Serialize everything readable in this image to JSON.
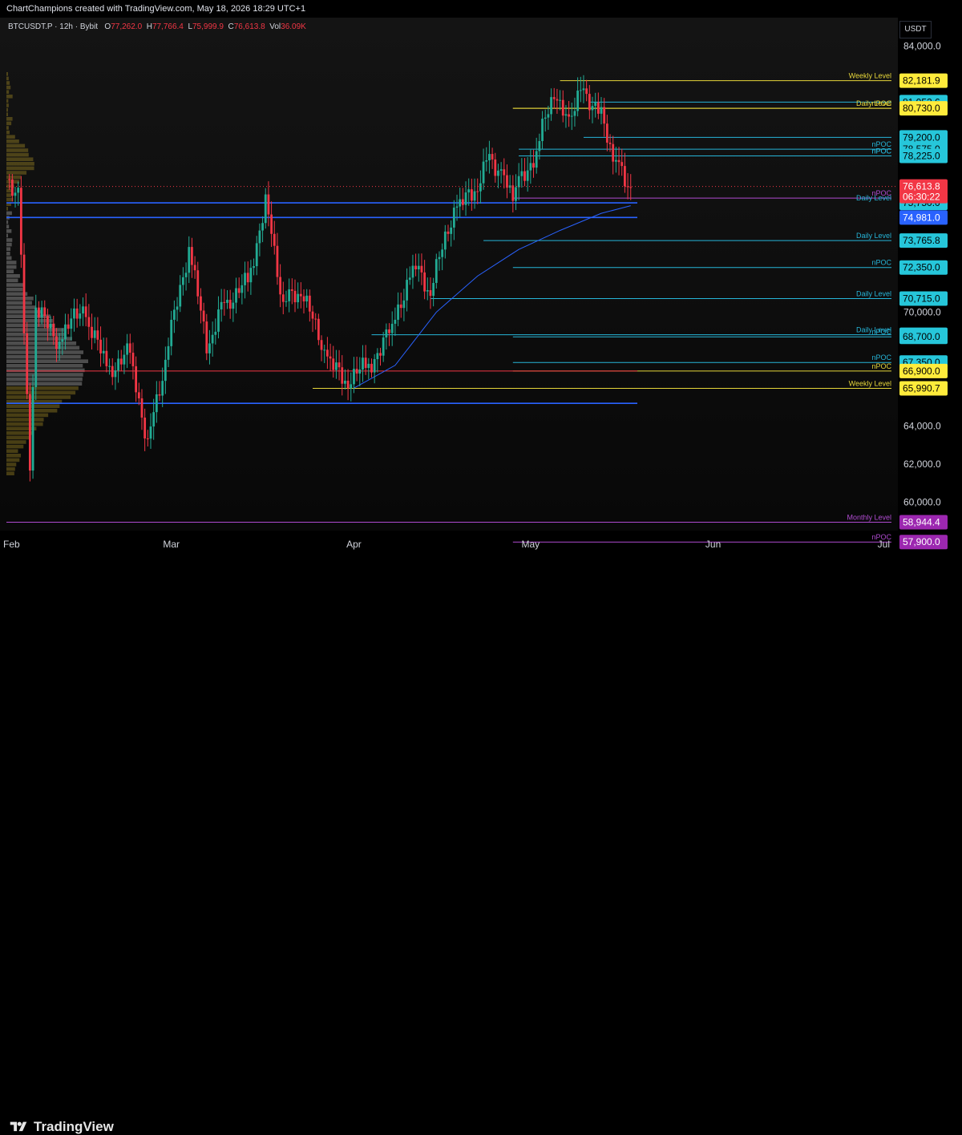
{
  "header": {
    "credit": "ChartChampions created with TradingView.com, May 18, 2026 18:29 UTC+1"
  },
  "legend": {
    "symbol": "BTCUSDT.P · 12h · Bybit",
    "o_label": "O",
    "o": "77,262.0",
    "h_label": "H",
    "h": "77,766.4",
    "l_label": "L",
    "l": "75,999.9",
    "c_label": "C",
    "c": "76,613.8",
    "vol_label": "Vol",
    "vol": "36.09K"
  },
  "axis": {
    "unit": "USDT"
  },
  "footer": {
    "brand": "TradingView"
  },
  "chart_data": {
    "type": "candlestick",
    "symbol": "BTCUSDT.P",
    "interval": "12h",
    "exchange": "Bybit",
    "ylim": [
      58500,
      85500
    ],
    "y_ticks": [
      {
        "value": 84000,
        "label": "84,000.0"
      },
      {
        "value": 70000,
        "label": "70,000.0"
      },
      {
        "value": 64000,
        "label": "64,000.0"
      },
      {
        "value": 62000,
        "label": "62,000.0"
      },
      {
        "value": 60000,
        "label": "60,000.0"
      }
    ],
    "x_ticks": [
      {
        "date": "2026-02-01",
        "label": "Feb"
      },
      {
        "date": "2026-03-01",
        "label": "Mar"
      },
      {
        "date": "2026-04-01",
        "label": "Apr"
      },
      {
        "date": "2026-05-01",
        "label": "May"
      },
      {
        "date": "2026-06-01",
        "label": "Jun"
      },
      {
        "date": "2026-07-01",
        "label": "Jul"
      }
    ],
    "x_range": [
      "2026-02-01",
      "2026-07-01"
    ],
    "candles": [
      {
        "date": "2026-02-01",
        "close": 77000
      },
      {
        "date": "2026-02-03",
        "close": 76500
      },
      {
        "date": "2026-02-05",
        "close": 62000
      },
      {
        "date": "2026-02-06",
        "close": 70000
      },
      {
        "date": "2026-02-10",
        "close": 68500
      },
      {
        "date": "2026-02-14",
        "close": 70200
      },
      {
        "date": "2026-02-18",
        "close": 67000
      },
      {
        "date": "2026-02-22",
        "close": 67800
      },
      {
        "date": "2026-02-25",
        "close": 63200
      },
      {
        "date": "2026-02-28",
        "close": 67500
      },
      {
        "date": "2026-03-04",
        "close": 73500
      },
      {
        "date": "2026-03-07",
        "close": 68000
      },
      {
        "date": "2026-03-10",
        "close": 70500
      },
      {
        "date": "2026-03-14",
        "close": 71500
      },
      {
        "date": "2026-03-17",
        "close": 76000
      },
      {
        "date": "2026-03-20",
        "close": 70500
      },
      {
        "date": "2026-03-23",
        "close": 71000
      },
      {
        "date": "2026-03-27",
        "close": 68000
      },
      {
        "date": "2026-03-30",
        "close": 66300
      },
      {
        "date": "2026-04-03",
        "close": 67000
      },
      {
        "date": "2026-04-07",
        "close": 68900
      },
      {
        "date": "2026-04-11",
        "close": 72500
      },
      {
        "date": "2026-04-14",
        "close": 71000
      },
      {
        "date": "2026-04-18",
        "close": 75500
      },
      {
        "date": "2026-04-21",
        "close": 76000
      },
      {
        "date": "2026-04-24",
        "close": 78200
      },
      {
        "date": "2026-04-26",
        "close": 77500
      },
      {
        "date": "2026-04-28",
        "close": 76300
      },
      {
        "date": "2026-05-02",
        "close": 78500
      },
      {
        "date": "2026-05-05",
        "close": 81500
      },
      {
        "date": "2026-05-07",
        "close": 80000
      },
      {
        "date": "2026-05-10",
        "close": 81700
      },
      {
        "date": "2026-05-13",
        "close": 80500
      },
      {
        "date": "2026-05-15",
        "close": 78300
      },
      {
        "date": "2026-05-18",
        "close": 76613.8
      }
    ],
    "moving_average": [
      {
        "date": "2026-04-01",
        "value": 66000
      },
      {
        "date": "2026-04-08",
        "value": 67200
      },
      {
        "date": "2026-04-15",
        "value": 70000
      },
      {
        "date": "2026-04-22",
        "value": 71900
      },
      {
        "date": "2026-04-29",
        "value": 73300
      },
      {
        "date": "2026-05-06",
        "value": 74300
      },
      {
        "date": "2026-05-13",
        "value": 75200
      },
      {
        "date": "2026-05-18",
        "value": 75600
      }
    ],
    "levels": [
      {
        "price": 82181.9,
        "label": "Weekly Level",
        "color": "#e6d63a",
        "tag_bg": "#ffeb3b",
        "tag_fg": "#000000",
        "start": "2026-05-06"
      },
      {
        "price": 81052.6,
        "label": "",
        "color": "#26b5d8",
        "tag_bg": "#26c6da",
        "tag_fg": "#000000",
        "start": "2026-05-11"
      },
      {
        "price": 80730.0,
        "label": "Daily Level",
        "color": "#e6d63a",
        "tag_bg": "#ffeb3b",
        "tag_fg": "#000000",
        "start": "2026-04-28"
      },
      {
        "price": 80730.0,
        "label": "nPOC",
        "color": "#e6d63a",
        "tag_bg": "",
        "tag_fg": "",
        "start": "2026-04-28"
      },
      {
        "price": 79200.0,
        "label": "",
        "color": "#26b5d8",
        "tag_bg": "#26c6da",
        "tag_fg": "#000000",
        "start": "2026-05-10"
      },
      {
        "price": 78575.0,
        "label": "nPOC",
        "color": "#26b5d8",
        "tag_bg": "#26c6da",
        "tag_fg": "#000000",
        "start": "2026-04-29"
      },
      {
        "price": 78225.0,
        "label": "nPOC",
        "color": "#26b5d8",
        "tag_bg": "#26c6da",
        "tag_fg": "#000000",
        "start": "2026-04-29"
      },
      {
        "price": 78225.0,
        "label": "nPOC",
        "color": "#26b5d8",
        "tag_bg": "",
        "tag_fg": "",
        "start": "2026-04-29"
      },
      {
        "price": 76000.0,
        "label": "nPOC",
        "color": "#b04bd1",
        "tag_bg": "#9c27b0",
        "tag_fg": "#ffffff",
        "start": "2026-04-28"
      },
      {
        "price": 75750.0,
        "label": "Daily Level",
        "color": "#2962ff",
        "tag_bg": "#26c6da",
        "tag_fg": "#000000",
        "start": "2026-02-01"
      },
      {
        "price": 74981.0,
        "label": "",
        "color": "#2962ff",
        "tag_bg": "#2962ff",
        "tag_fg": "#ffffff",
        "start": "2026-02-01"
      },
      {
        "price": 73765.8,
        "label": "Daily Level",
        "color": "#26b5d8",
        "tag_bg": "#26c6da",
        "tag_fg": "#000000",
        "start": "2026-04-23"
      },
      {
        "price": 72350.0,
        "label": "nPOC",
        "color": "#26b5d8",
        "tag_bg": "#26c6da",
        "tag_fg": "#000000",
        "start": "2026-04-28"
      },
      {
        "price": 70715.0,
        "label": "Daily Level",
        "color": "#26b5d8",
        "tag_bg": "#26c6da",
        "tag_fg": "#000000",
        "start": "2026-04-14"
      },
      {
        "price": 68807.5,
        "label": "Daily Level",
        "color": "#26b5d8",
        "tag_bg": "#26c6da",
        "tag_fg": "#000000",
        "start": "2026-04-04"
      },
      {
        "price": 68700.0,
        "label": "nPOC",
        "color": "#26b5d8",
        "tag_bg": "#26c6da",
        "tag_fg": "#000000",
        "start": "2026-04-28"
      },
      {
        "price": 67350.0,
        "label": "nPOC",
        "color": "#26b5d8",
        "tag_bg": "#26c6da",
        "tag_fg": "#000000",
        "start": "2026-04-28"
      },
      {
        "price": 66900.0,
        "label": "nPOC",
        "color": "#e6d63a",
        "tag_bg": "#ffeb3b",
        "tag_fg": "#000000",
        "start": "2026-04-28"
      },
      {
        "price": 66900.0,
        "label": "",
        "color": "#f23645",
        "tag_bg": "",
        "tag_fg": "",
        "start": "2026-02-01"
      },
      {
        "price": 65990.7,
        "label": "Weekly Level",
        "color": "#e6d63a",
        "tag_bg": "#ffeb3b",
        "tag_fg": "#000000",
        "start": "2026-03-25"
      },
      {
        "price": 65200.0,
        "label": "",
        "color": "#2962ff",
        "tag_bg": "",
        "tag_fg": "",
        "start": "2026-02-01"
      },
      {
        "price": 58944.4,
        "label": "Monthly Level",
        "color": "#b04bd1",
        "tag_bg": "#9c27b0",
        "tag_fg": "#ffffff",
        "start": "2026-02-01"
      },
      {
        "price": 57900.0,
        "label": "nPOC",
        "color": "#b04bd1",
        "tag_bg": "#9c27b0",
        "tag_fg": "#ffffff",
        "start": "2026-04-28"
      }
    ],
    "last_price": {
      "value": 76613.8,
      "label": "76,613.8",
      "countdown": "06:30:22",
      "color": "#f23645"
    },
    "colors": {
      "up": "#22ab94",
      "down": "#f23645",
      "ma": "#2962ff"
    }
  }
}
